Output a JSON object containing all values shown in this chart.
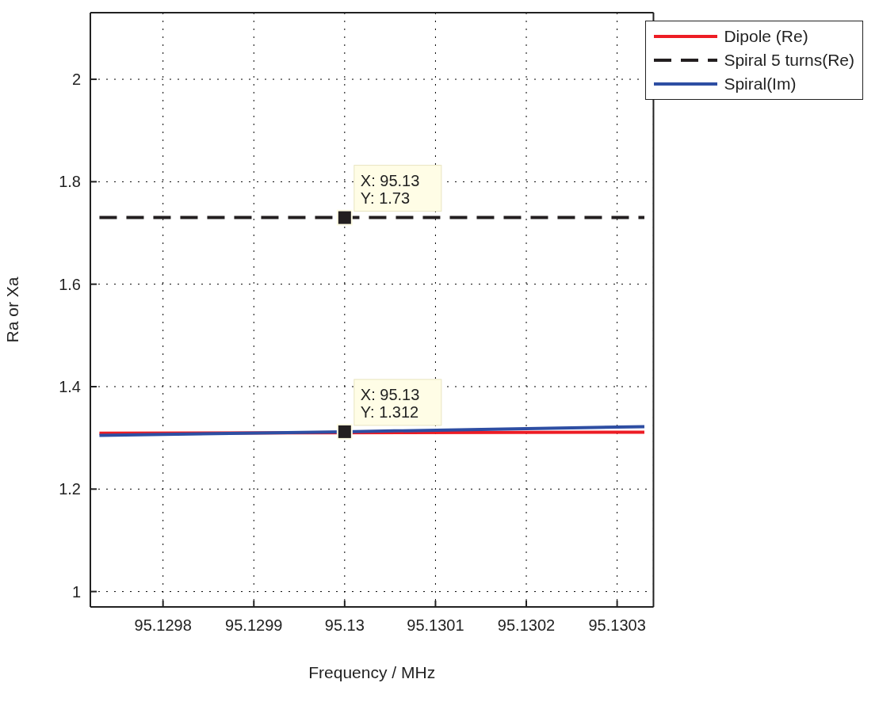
{
  "chart_data": {
    "type": "line",
    "xlabel": "Frequency / MHz",
    "ylabel": "Ra or Xa",
    "xlim": [
      95.12972,
      95.13034
    ],
    "xticks": [
      95.1298,
      95.1299,
      95.13,
      95.1301,
      95.1302,
      95.1303
    ],
    "ylim": [
      0.97,
      2.13
    ],
    "yticks": [
      1,
      1.2,
      1.4,
      1.6,
      1.8,
      2
    ],
    "grid": true,
    "legend": "top right",
    "marker": "none",
    "series": [
      {
        "name": "Dipole (Re)",
        "color": "#ed1c24",
        "line_style": "solid",
        "x": [
          95.12973,
          95.13033
        ],
        "values": [
          1.309,
          1.311
        ]
      },
      {
        "name": "Spiral 5 turns(Re)",
        "color": "#231f20",
        "line_style": "dashed",
        "x": [
          95.12973,
          95.13,
          95.13033
        ],
        "values": [
          1.73,
          1.73,
          1.73
        ]
      },
      {
        "name": "Spiral(Im)",
        "color": "#2e4ea3",
        "line_style": "solid",
        "x": [
          95.12973,
          95.13,
          95.13033
        ],
        "values": [
          1.305,
          1.312,
          1.322
        ]
      }
    ],
    "annotations": [
      {
        "text": "X: 95.13\nY: 1.73",
        "x": 95.13,
        "y": 1.73
      },
      {
        "text": "X: 95.13\nY: 1.312",
        "x": 95.13,
        "y": 1.312
      }
    ]
  }
}
